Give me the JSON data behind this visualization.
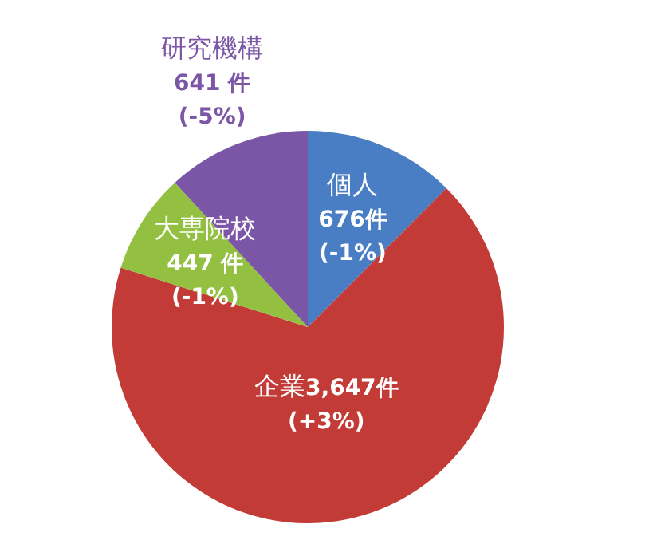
{
  "chart_data": {
    "type": "pie",
    "categories": [
      "個人",
      "企業",
      "大専院校",
      "研究機構"
    ],
    "values": [
      676,
      3647,
      447,
      641
    ],
    "colors": [
      "#4a7ec4",
      "#c23b37",
      "#93c040",
      "#7b55a6"
    ],
    "value_labels": [
      "676件",
      "3,647件",
      "447 件",
      "641 件"
    ],
    "annotations": [
      {
        "text": "(-1%)",
        "x": "個人"
      },
      {
        "text": "(+3%)",
        "x": "企業"
      },
      {
        "text": "(-1%)",
        "x": "大専院校"
      },
      {
        "text": "(-5%)",
        "x": "研究機構"
      }
    ]
  }
}
